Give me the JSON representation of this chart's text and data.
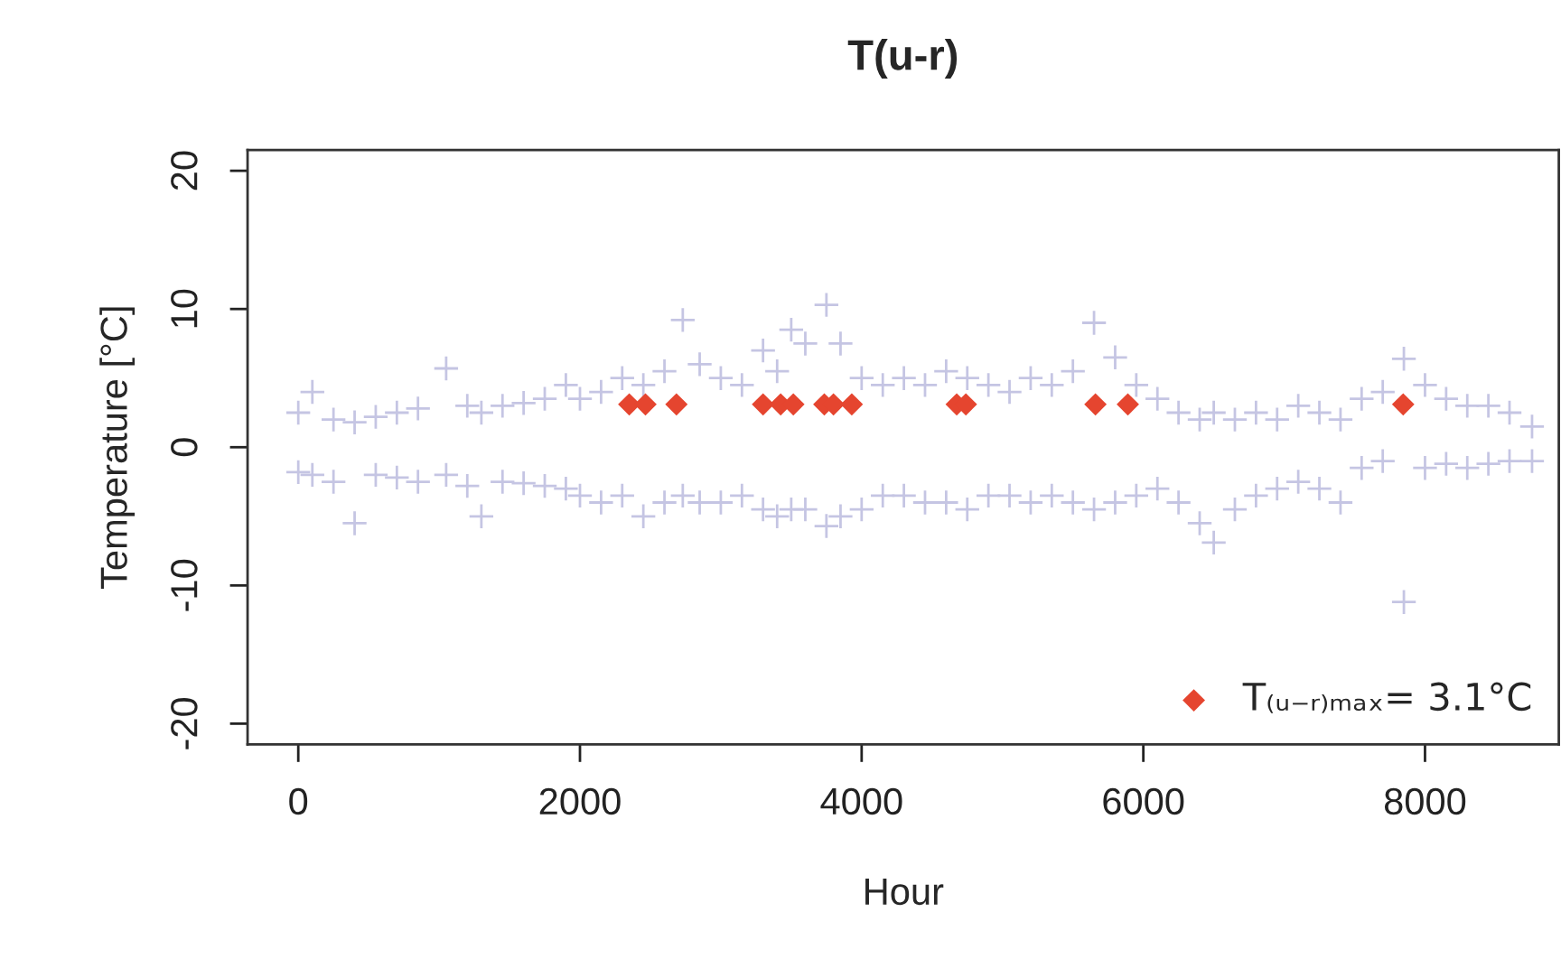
{
  "chart_data": {
    "type": "scatter",
    "title": "T(u-r)",
    "xlabel": "Hour",
    "ylabel": "Temperature [°C]",
    "xlim": [
      -360,
      8950
    ],
    "ylim": [
      -21.5,
      21.5
    ],
    "xticks": [
      0,
      2000,
      4000,
      6000,
      8000
    ],
    "yticks": [
      -20,
      -10,
      0,
      10,
      20
    ],
    "grid": false,
    "legend": "bottom right",
    "series": [
      {
        "color": "#c5c5e3",
        "marker": "cross",
        "x": [
          0,
          0,
          100,
          100,
          250,
          250,
          400,
          400,
          550,
          550,
          700,
          700,
          850,
          850,
          1050,
          1050,
          1200,
          1200,
          1300,
          1300,
          1450,
          1450,
          1600,
          1600,
          1750,
          1750,
          1900,
          1900,
          2000,
          2000,
          2150,
          2150,
          2300,
          2300,
          2450,
          2450,
          2600,
          2600,
          2730,
          2730,
          2850,
          2850,
          3000,
          3000,
          3150,
          3150,
          3300,
          3300,
          3400,
          3400,
          3500,
          3500,
          3600,
          3600,
          3750,
          3750,
          3850,
          3850,
          4000,
          4000,
          4150,
          4150,
          4300,
          4300,
          4450,
          4450,
          4600,
          4600,
          4750,
          4750,
          4900,
          4900,
          5050,
          5050,
          5200,
          5200,
          5350,
          5350,
          5500,
          5500,
          5650,
          5650,
          5800,
          5800,
          5950,
          5950,
          6100,
          6100,
          6250,
          6250,
          6400,
          6400,
          6500,
          6500,
          6650,
          6650,
          6800,
          6800,
          6950,
          6950,
          7100,
          7100,
          7250,
          7250,
          7400,
          7400,
          7550,
          7550,
          7700,
          7700,
          7850,
          7850,
          8000,
          8000,
          8150,
          8150,
          8300,
          8300,
          8450,
          8450,
          8600,
          8600,
          8760,
          8760
        ],
        "values": [
          2.5,
          -1.8,
          4.0,
          -2.0,
          2.0,
          -2.5,
          1.8,
          -5.5,
          2.2,
          -2.0,
          2.5,
          -2.2,
          2.8,
          -2.5,
          5.7,
          -2.0,
          3.0,
          -2.8,
          2.5,
          -5.0,
          3.0,
          -2.5,
          3.2,
          -2.6,
          3.5,
          -2.8,
          4.5,
          -3.0,
          3.5,
          -3.5,
          4.0,
          -4.0,
          5.0,
          -3.5,
          4.5,
          -5.0,
          5.5,
          -4.0,
          9.2,
          -3.5,
          6.0,
          -4.0,
          5.0,
          -4.0,
          4.5,
          -3.5,
          7.0,
          -4.5,
          5.5,
          -5.0,
          8.5,
          -4.5,
          7.5,
          -4.5,
          10.3,
          -5.7,
          7.5,
          -5.0,
          5.0,
          -4.5,
          4.5,
          -3.5,
          5.0,
          -3.5,
          4.5,
          -4.0,
          5.5,
          -4.0,
          5.0,
          -4.5,
          4.5,
          -3.5,
          4.0,
          -3.5,
          5.0,
          -4.0,
          4.5,
          -3.5,
          5.5,
          -4.0,
          9.0,
          -4.5,
          6.5,
          -4.0,
          4.5,
          -3.5,
          3.5,
          -3.0,
          2.5,
          -4.0,
          2.0,
          -5.5,
          2.5,
          -6.9,
          2.0,
          -4.5,
          2.5,
          -3.5,
          2.0,
          -3.0,
          3.0,
          -2.5,
          2.5,
          -3.0,
          2.0,
          -4.0,
          3.5,
          -1.5,
          4.0,
          -1.0,
          6.4,
          -11.2,
          4.5,
          -1.5,
          3.5,
          -1.2,
          3.0,
          -1.5,
          3.0,
          -1.2,
          2.5,
          -1.0,
          1.5,
          -1.0
        ]
      },
      {
        "name": "T₍ᵤ₋ᵣ₎ₘₐₓ= 3.1°C",
        "color": "#e5452f",
        "marker": "diamond",
        "x": [
          2350,
          2465,
          2685,
          3300,
          3425,
          3515,
          3735,
          3800,
          3930,
          4675,
          4740,
          5660,
          5890,
          7845
        ],
        "values": [
          3.1,
          3.1,
          3.1,
          3.1,
          3.1,
          3.1,
          3.1,
          3.1,
          3.1,
          3.1,
          3.1,
          3.1,
          3.1,
          3.1
        ]
      }
    ]
  }
}
